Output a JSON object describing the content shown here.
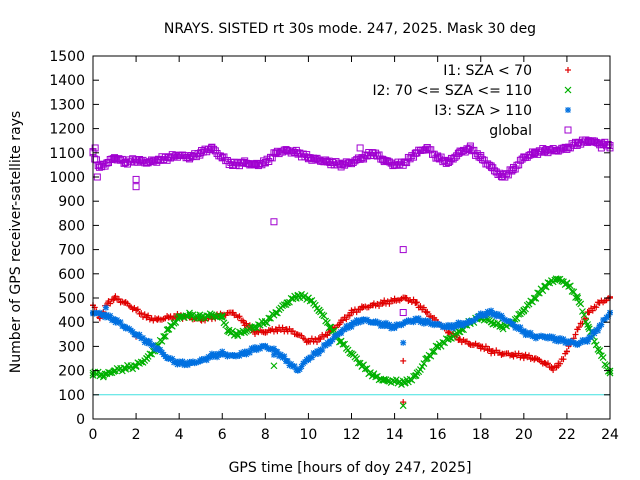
{
  "chart_data": {
    "type": "scatter",
    "title": "NRAYS. SISTED rt 30s mode. 247, 2025. Mask 30 deg",
    "xlabel": "GPS time [hours of doy 247, 2025]",
    "ylabel": "Number of GPS receiver-satellite rays",
    "xlim": [
      0,
      24
    ],
    "ylim": [
      0,
      1500
    ],
    "xticks": [
      0,
      2,
      4,
      6,
      8,
      10,
      12,
      14,
      16,
      18,
      20,
      22,
      24
    ],
    "yticks": [
      0,
      100,
      200,
      300,
      400,
      500,
      600,
      700,
      800,
      900,
      1000,
      1100,
      1200,
      1300,
      1400,
      1500
    ],
    "threshold": {
      "value": 100,
      "color": "#40e0e0"
    },
    "legend_position": "top-right",
    "series": [
      {
        "name": "I1: SZA < 70",
        "marker": "plus",
        "color": "#e00000",
        "x": [
          0,
          0.3,
          0.7,
          1,
          1.5,
          2,
          2.5,
          3,
          3.5,
          4,
          4.5,
          5,
          5.5,
          6,
          6.5,
          7,
          7.5,
          8,
          8.5,
          9,
          9.5,
          10,
          10.5,
          11,
          11.5,
          12,
          12.5,
          13,
          13.5,
          14,
          14.5,
          15,
          15.5,
          16,
          16.5,
          17,
          17.5,
          18,
          18.5,
          19,
          19.5,
          20,
          20.5,
          21,
          21.3,
          21.6,
          22,
          22.5,
          23,
          23.5,
          24
        ],
        "values": [
          470,
          420,
          480,
          500,
          480,
          450,
          420,
          410,
          420,
          425,
          420,
          410,
          420,
          430,
          440,
          400,
          360,
          360,
          370,
          370,
          350,
          320,
          330,
          360,
          400,
          440,
          460,
          470,
          480,
          490,
          500,
          480,
          440,
          400,
          360,
          330,
          310,
          300,
          280,
          270,
          265,
          260,
          250,
          230,
          210,
          220,
          280,
          370,
          440,
          480,
          500
        ],
        "outliers": [
          {
            "x": 2.0,
            "y": 340
          },
          {
            "x": 14.4,
            "y": 240
          },
          {
            "x": 14.4,
            "y": 70
          }
        ]
      },
      {
        "name": "I2: 70 <= SZA <= 110",
        "marker": "cross",
        "color": "#00b000",
        "x": [
          0,
          0.5,
          1,
          1.5,
          2,
          2.5,
          3,
          3.5,
          4,
          4.5,
          5,
          5.5,
          6,
          6.3,
          6.7,
          7,
          7.5,
          8,
          8.5,
          9,
          9.5,
          10,
          10.5,
          11,
          11.5,
          12,
          12.5,
          13,
          13.5,
          14,
          14.5,
          15,
          15.5,
          16,
          16.5,
          17,
          17.5,
          18,
          18.5,
          19,
          19.5,
          20,
          20.5,
          21,
          21.5,
          22,
          22.5,
          23,
          23.5,
          24
        ],
        "values": [
          190,
          180,
          200,
          210,
          220,
          250,
          300,
          370,
          420,
          430,
          420,
          430,
          420,
          360,
          350,
          360,
          380,
          400,
          440,
          480,
          510,
          500,
          450,
          380,
          320,
          270,
          220,
          180,
          160,
          155,
          150,
          180,
          250,
          300,
          330,
          360,
          400,
          420,
          400,
          380,
          400,
          450,
          500,
          550,
          580,
          560,
          500,
          380,
          280,
          190
        ],
        "outliers": [
          {
            "x": 8.4,
            "y": 220
          },
          {
            "x": 14.4,
            "y": 55
          }
        ]
      },
      {
        "name": "I3: SZA > 110",
        "marker": "star",
        "color": "#0070e0",
        "x": [
          0,
          0.5,
          1,
          1.5,
          2,
          2.5,
          3,
          3.5,
          4,
          4.5,
          5,
          5.5,
          6,
          6.5,
          7,
          7.5,
          8,
          8.5,
          9,
          9.5,
          10,
          10.5,
          11,
          11.5,
          12,
          12.5,
          13,
          13.5,
          14,
          14.5,
          15,
          15.5,
          16,
          16.5,
          17,
          17.5,
          18,
          18.5,
          19,
          19.5,
          20,
          20.5,
          21,
          21.5,
          22,
          22.5,
          23,
          23.5,
          24
        ],
        "values": [
          440,
          430,
          410,
          380,
          350,
          320,
          290,
          250,
          230,
          230,
          240,
          260,
          270,
          260,
          270,
          290,
          300,
          280,
          240,
          200,
          250,
          280,
          320,
          360,
          390,
          410,
          400,
          390,
          380,
          400,
          410,
          400,
          390,
          380,
          390,
          400,
          430,
          440,
          420,
          390,
          360,
          340,
          340,
          330,
          320,
          310,
          330,
          380,
          440
        ],
        "outliers": [
          {
            "x": 0.6,
            "y": 460
          },
          {
            "x": 8.4,
            "y": 265
          },
          {
            "x": 14.4,
            "y": 315
          }
        ]
      },
      {
        "name": "global",
        "marker": "square",
        "color": "#a000d0",
        "x": [
          0,
          0.3,
          0.7,
          1,
          1.5,
          2,
          2.5,
          3,
          3.5,
          4,
          4.5,
          5,
          5.5,
          6,
          6.5,
          7,
          7.5,
          8,
          8.5,
          9,
          9.5,
          10,
          10.5,
          11,
          11.5,
          12,
          12.5,
          13,
          13.5,
          14,
          14.5,
          15,
          15.5,
          16,
          16.5,
          17,
          17.5,
          18,
          18.5,
          19,
          19.5,
          20,
          20.5,
          21,
          21.5,
          22,
          22.5,
          23,
          23.5,
          24
        ],
        "values": [
          1100,
          1040,
          1060,
          1080,
          1060,
          1070,
          1060,
          1070,
          1080,
          1090,
          1080,
          1100,
          1120,
          1080,
          1050,
          1060,
          1050,
          1060,
          1100,
          1110,
          1100,
          1080,
          1070,
          1060,
          1050,
          1060,
          1080,
          1100,
          1070,
          1050,
          1060,
          1100,
          1120,
          1080,
          1060,
          1100,
          1120,
          1080,
          1040,
          1000,
          1030,
          1080,
          1100,
          1110,
          1110,
          1120,
          1140,
          1150,
          1140,
          1130
        ],
        "outliers": [
          {
            "x": 0.1,
            "y": 1120
          },
          {
            "x": 0.2,
            "y": 1000
          },
          {
            "x": 2.0,
            "y": 990
          },
          {
            "x": 2.0,
            "y": 960
          },
          {
            "x": 8.4,
            "y": 815
          },
          {
            "x": 14.4,
            "y": 700
          },
          {
            "x": 14.4,
            "y": 440
          },
          {
            "x": 12.4,
            "y": 1120
          },
          {
            "x": 23.6,
            "y": 1120
          }
        ]
      }
    ]
  }
}
